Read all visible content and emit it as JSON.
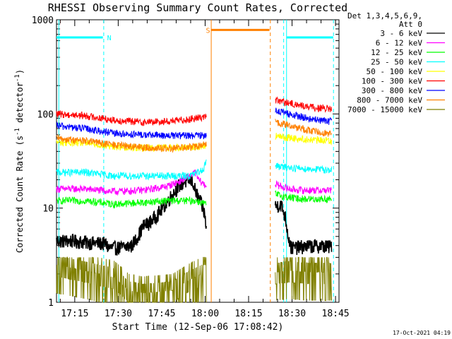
{
  "chart_data": {
    "type": "line",
    "title": "RHESSI Observing Summary Count Rates, Corrected",
    "xlabel": "Start Time (12-Sep-06 17:08:42)",
    "ylabel": "Corrected Count Rate (s⁻¹ detector⁻¹)",
    "ylabel_parts": [
      "Corrected Count Rate (s",
      "-1",
      " detector",
      "-1",
      ")"
    ],
    "yscale": "log",
    "ylim": [
      1,
      1000
    ],
    "xlim_minutes": [
      0,
      97.5
    ],
    "x_unit": "minutes after 17:08:42",
    "x_ticks": [
      {
        "label": "17:15",
        "minute": 6.3
      },
      {
        "label": "17:30",
        "minute": 21.3
      },
      {
        "label": "17:45",
        "minute": 36.3
      },
      {
        "label": "18:00",
        "minute": 51.3
      },
      {
        "label": "18:15",
        "minute": 66.3
      },
      {
        "label": "18:30",
        "minute": 81.3
      },
      {
        "label": "18:45",
        "minute": 96.3
      }
    ],
    "y_ticks": [
      {
        "label": "1",
        "value": 1
      },
      {
        "label": "10",
        "value": 10
      },
      {
        "label": "100",
        "value": 100
      },
      {
        "label": "1000",
        "value": 1000
      }
    ],
    "legend": {
      "placement": "right",
      "header": [
        "Det 1,3,4,5,6,9,",
        "Att 0"
      ],
      "entries": [
        "3 - 6 keV",
        "6 - 12 keV",
        "12 - 25 keV",
        "25 - 50 keV",
        "50 - 100 keV",
        "100 - 300 keV",
        "300 - 800 keV",
        "800 - 7000 keV",
        "7000 - 15000 keV"
      ]
    },
    "gaps_minutes": [
      [
        51.8,
        75.5
      ]
    ],
    "series": [
      {
        "name": "3 - 6 keV",
        "color": "#000000",
        "points": [
          [
            0,
            4.5
          ],
          [
            5,
            4.5
          ],
          [
            12,
            4.3
          ],
          [
            17,
            4.2
          ],
          [
            18,
            3.8
          ],
          [
            22,
            3.8
          ],
          [
            26,
            4.0
          ],
          [
            28,
            5.0
          ],
          [
            30,
            6.5
          ],
          [
            32,
            7.0
          ],
          [
            34,
            8.0
          ],
          [
            36,
            9.5
          ],
          [
            38,
            11.5
          ],
          [
            40,
            14
          ],
          [
            42,
            17
          ],
          [
            44,
            19
          ],
          [
            46,
            20
          ],
          [
            47,
            19
          ],
          [
            48,
            15
          ],
          [
            50,
            11
          ],
          [
            51,
            9
          ],
          [
            51.8,
            6
          ],
          [
            77.5,
            11
          ],
          [
            79,
            8
          ],
          [
            80,
            5
          ],
          [
            81,
            3.8
          ],
          [
            85,
            3.9
          ],
          [
            90,
            4.0
          ],
          [
            95,
            4.1
          ],
          [
            94.5,
            3.9
          ]
        ]
      },
      {
        "name": "6 - 12 keV",
        "color": "#ff00ff",
        "points": [
          [
            0,
            16
          ],
          [
            10,
            16
          ],
          [
            20,
            15
          ],
          [
            30,
            15.5
          ],
          [
            38,
            17
          ],
          [
            42,
            19
          ],
          [
            46,
            22
          ],
          [
            48,
            24
          ],
          [
            49,
            20
          ],
          [
            51.8,
            17
          ],
          [
            75.5,
            18
          ],
          [
            80,
            16
          ],
          [
            85,
            15.5
          ],
          [
            95,
            15.5
          ]
        ]
      },
      {
        "name": "12 - 25 keV",
        "color": "#00ff00",
        "points": [
          [
            0,
            12
          ],
          [
            10,
            12
          ],
          [
            20,
            11
          ],
          [
            30,
            11.5
          ],
          [
            38,
            12
          ],
          [
            44,
            12
          ],
          [
            48,
            12
          ],
          [
            50,
            11.5
          ],
          [
            51.8,
            11
          ],
          [
            75.5,
            14
          ],
          [
            80,
            13
          ],
          [
            85,
            12.5
          ],
          [
            95,
            12.5
          ]
        ]
      },
      {
        "name": "25 - 50 keV",
        "color": "#00ffff",
        "points": [
          [
            0,
            24
          ],
          [
            10,
            24
          ],
          [
            20,
            22
          ],
          [
            30,
            22
          ],
          [
            40,
            22
          ],
          [
            46,
            22
          ],
          [
            49,
            24
          ],
          [
            51,
            27
          ],
          [
            51.8,
            34
          ],
          [
            75.5,
            28
          ],
          [
            80,
            27
          ],
          [
            88,
            26
          ],
          [
            95,
            25.5
          ]
        ]
      },
      {
        "name": "50 - 100 keV",
        "color": "#ffff00",
        "points": [
          [
            0,
            50
          ],
          [
            10,
            49
          ],
          [
            20,
            45
          ],
          [
            30,
            44
          ],
          [
            40,
            44
          ],
          [
            48,
            45
          ],
          [
            51.8,
            46
          ],
          [
            75.5,
            58
          ],
          [
            80,
            56
          ],
          [
            88,
            53
          ],
          [
            95,
            52
          ]
        ]
      },
      {
        "name": "100 - 300 keV",
        "color": "#ff0000",
        "points": [
          [
            0,
            100
          ],
          [
            10,
            96
          ],
          [
            20,
            86
          ],
          [
            30,
            82
          ],
          [
            40,
            84
          ],
          [
            48,
            90
          ],
          [
            51.8,
            95
          ],
          [
            75.5,
            140
          ],
          [
            80,
            130
          ],
          [
            88,
            118
          ],
          [
            95,
            112
          ]
        ]
      },
      {
        "name": "300 - 800 keV",
        "color": "#0000ff",
        "points": [
          [
            0,
            75
          ],
          [
            10,
            70
          ],
          [
            20,
            62
          ],
          [
            30,
            60
          ],
          [
            40,
            59
          ],
          [
            48,
            59
          ],
          [
            51.8,
            60
          ],
          [
            75.5,
            110
          ],
          [
            80,
            100
          ],
          [
            88,
            88
          ],
          [
            95,
            83
          ]
        ]
      },
      {
        "name": "800 - 7000 keV",
        "color": "#ff8000",
        "points": [
          [
            0,
            55
          ],
          [
            10,
            52
          ],
          [
            20,
            47
          ],
          [
            30,
            44
          ],
          [
            40,
            43
          ],
          [
            48,
            45
          ],
          [
            51.8,
            48
          ],
          [
            75.5,
            82
          ],
          [
            80,
            76
          ],
          [
            88,
            66
          ],
          [
            95,
            62
          ]
        ]
      },
      {
        "name": "7000 - 15000 keV",
        "color": "#808000",
        "points": [
          [
            0,
            3.0
          ],
          [
            10,
            2.6
          ],
          [
            20,
            2.2
          ],
          [
            25,
            1.6
          ],
          [
            30,
            1.5
          ],
          [
            40,
            1.6
          ],
          [
            45,
            2.0
          ],
          [
            50,
            2.4
          ],
          [
            51.8,
            2.4
          ],
          [
            75.5,
            2.5
          ],
          [
            80,
            2.6
          ],
          [
            88,
            2.5
          ],
          [
            95,
            2.5
          ]
        ]
      }
    ],
    "annotations": [
      {
        "label": "N",
        "color": "#00ffff",
        "start_minute": 0,
        "end_minute": 16,
        "value": 650
      },
      {
        "label": "S",
        "color": "#ff8000",
        "start_minute": 53.5,
        "end_minute": 73.5,
        "value": 780
      },
      {
        "label": "",
        "color": "#00ffff",
        "start_minute": 79.5,
        "end_minute": 95.5,
        "value": 650
      }
    ],
    "markers": [
      {
        "color": "#00ffff",
        "style": "solid",
        "minute": 0.8
      },
      {
        "color": "#00ffff",
        "style": "dashed",
        "minute": 16.3
      },
      {
        "color": "#ff8000",
        "style": "solid",
        "minute": 53.4
      },
      {
        "color": "#ff8000",
        "style": "dashed",
        "minute": 73.8
      },
      {
        "color": "#00ffff",
        "style": "dashed",
        "minute": 78.4
      },
      {
        "color": "#00ffff",
        "style": "solid",
        "minute": 79.4
      },
      {
        "color": "#00ffff",
        "style": "dashed",
        "minute": 95.6
      }
    ],
    "colors": {
      "axis": "#000000",
      "text": "#000000",
      "background": "#ffffff"
    }
  },
  "footer": {
    "date_stamp": "17-Oct-2021 04:19"
  }
}
